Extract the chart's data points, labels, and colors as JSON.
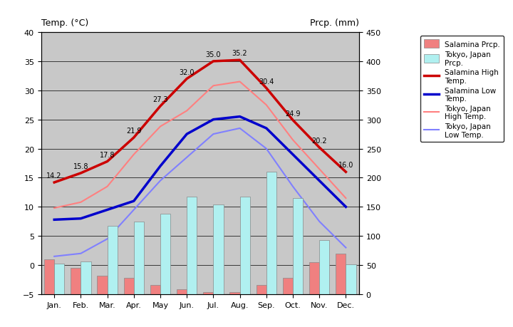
{
  "months": [
    "Jan.",
    "Feb.",
    "Mar.",
    "Apr.",
    "May",
    "Jun.",
    "Jul.",
    "Aug.",
    "Sep.",
    "Oct.",
    "Nov.",
    "Dec."
  ],
  "salamina_high": [
    14.2,
    15.8,
    17.8,
    21.9,
    27.3,
    32.0,
    35.0,
    35.2,
    30.4,
    24.9,
    20.2,
    16.0
  ],
  "salamina_low": [
    7.8,
    8.0,
    9.5,
    11.0,
    17.0,
    22.5,
    25.0,
    25.5,
    23.5,
    19.0,
    14.5,
    10.0
  ],
  "tokyo_high": [
    9.8,
    10.8,
    13.5,
    19.0,
    23.8,
    26.5,
    30.8,
    31.5,
    27.5,
    21.5,
    16.5,
    11.5
  ],
  "tokyo_low": [
    1.5,
    2.0,
    4.5,
    9.5,
    14.5,
    18.5,
    22.5,
    23.5,
    20.0,
    13.5,
    7.5,
    3.0
  ],
  "salamina_prcp_mm": [
    60,
    45,
    32,
    28,
    16,
    8,
    4,
    4,
    16,
    28,
    55,
    70
  ],
  "tokyo_prcp_mm": [
    52,
    56,
    118,
    125,
    138,
    168,
    154,
    168,
    210,
    165,
    93,
    51
  ],
  "temp_ylim": [
    -5,
    40
  ],
  "prcp_ylim": [
    0,
    450
  ],
  "background_color": "#c8c8c8",
  "salamina_high_color": "#cc0000",
  "salamina_low_color": "#0000cc",
  "tokyo_high_color": "#ff8080",
  "tokyo_low_color": "#8080ff",
  "salamina_prcp_color": "#f08080",
  "tokyo_prcp_color": "#b0f0f0",
  "title_left": "Temp. (°C)",
  "title_right": "Prcp. (mm)",
  "legend_labels": [
    "Salamina Prcp.",
    "Tokyo, Japan\nPrcp.",
    "Salamina High\nTemp.",
    "Salamina Low\nTemp.",
    "Tokyo, Japan\nHigh Temp.",
    "Tokyo, Japan\nLow Temp."
  ]
}
